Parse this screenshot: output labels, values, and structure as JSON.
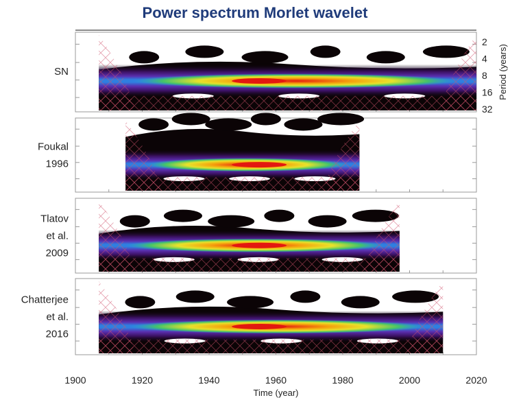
{
  "title": "Power spectrum Morlet wavelet",
  "colors": {
    "title": "#1f3b7a",
    "background_power": "#0b0406",
    "high_power": "#e3180f",
    "cone_of_influence": "#d0506a"
  },
  "chart_data": {
    "type": "heatmap",
    "title": "Power spectrum Morlet wavelet",
    "xlabel": "Time (year)",
    "ylabel": "Period (years)",
    "xlim": [
      1900,
      2020
    ],
    "x_ticks": [
      "1900",
      "1920",
      "1940",
      "1960",
      "1980",
      "2000",
      "2020"
    ],
    "y_ticks": [
      "2",
      "4",
      "8",
      "16",
      "32"
    ],
    "y_scale": "log2",
    "colormap": "white-black-purple-blue-green-yellow-red",
    "panels": [
      {
        "label": [
          "SN"
        ],
        "time_range": [
          1907,
          2020
        ],
        "peak_period": 9.5,
        "peak_year": 1955,
        "band_extent": [
          1907,
          2020
        ]
      },
      {
        "label": [
          "Foukal",
          "1996"
        ],
        "time_range": [
          1915,
          1985
        ],
        "peak_period": 10,
        "peak_year": 1955,
        "band_extent": [
          1915,
          1985
        ]
      },
      {
        "label": [
          "Tlatov",
          "et al.",
          "2009"
        ],
        "time_range": [
          1907,
          1997
        ],
        "peak_period": 10,
        "peak_year": 1955,
        "band_extent": [
          1907,
          1997
        ]
      },
      {
        "label": [
          "Chatterjee",
          "et al.",
          "2016"
        ],
        "time_range": [
          1907,
          2010
        ],
        "peak_period": 10,
        "peak_year": 1955,
        "band_extent": [
          1907,
          2010
        ]
      }
    ]
  }
}
